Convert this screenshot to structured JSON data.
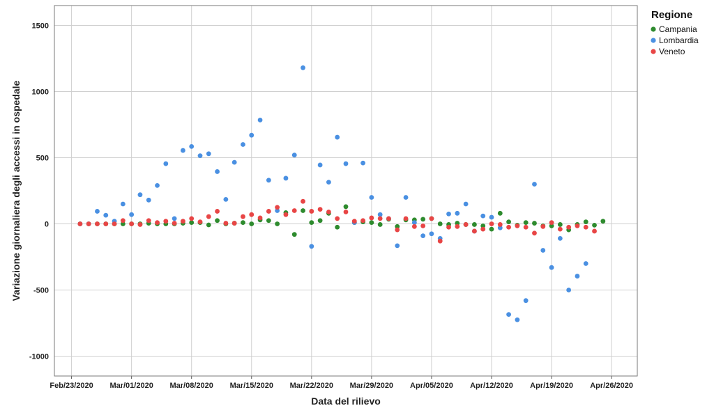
{
  "chart_data": {
    "type": "scatter",
    "title": "",
    "xlabel": "Data del rilievo",
    "ylabel": "Variazione giornaliera degli accessi in ospedale",
    "x_ticks": [
      "Feb/23/2020",
      "Mar/01/2020",
      "Mar/08/2020",
      "Mar/15/2020",
      "Mar/22/2020",
      "Mar/29/2020",
      "Apr/05/2020",
      "Apr/12/2020",
      "Apr/19/2020",
      "Apr/26/2020"
    ],
    "xlim": [
      "2020-02-21",
      "2020-04-29"
    ],
    "ylim": [
      -1150,
      1650
    ],
    "y_ticks": [
      -1000,
      -500,
      0,
      500,
      1000,
      1500
    ],
    "grid": true,
    "legend": {
      "title": "Regione",
      "position": "right"
    },
    "series": [
      {
        "name": "Campania",
        "color": "#2e8b2e",
        "points": [
          [
            "2020-02-24",
            0
          ],
          [
            "2020-02-25",
            0
          ],
          [
            "2020-02-26",
            0
          ],
          [
            "2020-02-27",
            0
          ],
          [
            "2020-02-28",
            0
          ],
          [
            "2020-02-29",
            0
          ],
          [
            "2020-03-01",
            0
          ],
          [
            "2020-03-02",
            0
          ],
          [
            "2020-03-03",
            5
          ],
          [
            "2020-03-04",
            0
          ],
          [
            "2020-03-05",
            0
          ],
          [
            "2020-03-06",
            0
          ],
          [
            "2020-03-07",
            5
          ],
          [
            "2020-03-08",
            10
          ],
          [
            "2020-03-09",
            10
          ],
          [
            "2020-03-10",
            -8
          ],
          [
            "2020-03-11",
            25
          ],
          [
            "2020-03-12",
            0
          ],
          [
            "2020-03-13",
            5
          ],
          [
            "2020-03-14",
            10
          ],
          [
            "2020-03-15",
            0
          ],
          [
            "2020-03-16",
            30
          ],
          [
            "2020-03-17",
            25
          ],
          [
            "2020-03-18",
            0
          ],
          [
            "2020-03-19",
            85
          ],
          [
            "2020-03-20",
            -80
          ],
          [
            "2020-03-21",
            100
          ],
          [
            "2020-03-22",
            10
          ],
          [
            "2020-03-23",
            25
          ],
          [
            "2020-03-24",
            80
          ],
          [
            "2020-03-25",
            -25
          ],
          [
            "2020-03-26",
            130
          ],
          [
            "2020-03-27",
            10
          ],
          [
            "2020-03-28",
            15
          ],
          [
            "2020-03-29",
            10
          ],
          [
            "2020-03-30",
            -5
          ],
          [
            "2020-03-31",
            35
          ],
          [
            "2020-04-01",
            -20
          ],
          [
            "2020-04-02",
            30
          ],
          [
            "2020-04-03",
            30
          ],
          [
            "2020-04-04",
            35
          ],
          [
            "2020-04-05",
            40
          ],
          [
            "2020-04-06",
            0
          ],
          [
            "2020-04-07",
            -5
          ],
          [
            "2020-04-08",
            5
          ],
          [
            "2020-04-09",
            -5
          ],
          [
            "2020-04-10",
            -5
          ],
          [
            "2020-04-11",
            -15
          ],
          [
            "2020-04-12",
            -40
          ],
          [
            "2020-04-13",
            80
          ],
          [
            "2020-04-14",
            15
          ],
          [
            "2020-04-15",
            -10
          ],
          [
            "2020-04-16",
            10
          ],
          [
            "2020-04-17",
            5
          ],
          [
            "2020-04-18",
            -15
          ],
          [
            "2020-04-19",
            -15
          ],
          [
            "2020-04-20",
            -5
          ],
          [
            "2020-04-21",
            -45
          ],
          [
            "2020-04-22",
            -5
          ],
          [
            "2020-04-23",
            15
          ],
          [
            "2020-04-24",
            -10
          ],
          [
            "2020-04-25",
            20
          ]
        ]
      },
      {
        "name": "Lombardia",
        "color": "#4a90e2",
        "points": [
          [
            "2020-02-24",
            0
          ],
          [
            "2020-02-25",
            0
          ],
          [
            "2020-02-26",
            95
          ],
          [
            "2020-02-27",
            65
          ],
          [
            "2020-02-28",
            20
          ],
          [
            "2020-02-29",
            150
          ],
          [
            "2020-03-01",
            70
          ],
          [
            "2020-03-02",
            220
          ],
          [
            "2020-03-03",
            180
          ],
          [
            "2020-03-04",
            290
          ],
          [
            "2020-03-05",
            455
          ],
          [
            "2020-03-06",
            40
          ],
          [
            "2020-03-07",
            555
          ],
          [
            "2020-03-08",
            585
          ],
          [
            "2020-03-09",
            515
          ],
          [
            "2020-03-10",
            530
          ],
          [
            "2020-03-11",
            395
          ],
          [
            "2020-03-12",
            185
          ],
          [
            "2020-03-13",
            465
          ],
          [
            "2020-03-14",
            600
          ],
          [
            "2020-03-15",
            670
          ],
          [
            "2020-03-16",
            785
          ],
          [
            "2020-03-17",
            330
          ],
          [
            "2020-03-18",
            100
          ],
          [
            "2020-03-19",
            345
          ],
          [
            "2020-03-20",
            520
          ],
          [
            "2020-03-21",
            1180
          ],
          [
            "2020-03-22",
            -170
          ],
          [
            "2020-03-23",
            445
          ],
          [
            "2020-03-24",
            315
          ],
          [
            "2020-03-25",
            655
          ],
          [
            "2020-03-26",
            455
          ],
          [
            "2020-03-27",
            10
          ],
          [
            "2020-03-28",
            460
          ],
          [
            "2020-03-29",
            200
          ],
          [
            "2020-03-30",
            70
          ],
          [
            "2020-03-31",
            40
          ],
          [
            "2020-04-01",
            -165
          ],
          [
            "2020-04-02",
            200
          ],
          [
            "2020-04-03",
            10
          ],
          [
            "2020-04-04",
            -90
          ],
          [
            "2020-04-05",
            -75
          ],
          [
            "2020-04-06",
            -110
          ],
          [
            "2020-04-07",
            75
          ],
          [
            "2020-04-08",
            80
          ],
          [
            "2020-04-09",
            150
          ],
          [
            "2020-04-10",
            -55
          ],
          [
            "2020-04-11",
            60
          ],
          [
            "2020-04-12",
            50
          ],
          [
            "2020-04-13",
            -30
          ],
          [
            "2020-04-14",
            -685
          ],
          [
            "2020-04-15",
            -725
          ],
          [
            "2020-04-16",
            -580
          ],
          [
            "2020-04-17",
            300
          ],
          [
            "2020-04-18",
            -200
          ],
          [
            "2020-04-19",
            -330
          ],
          [
            "2020-04-20",
            -110
          ],
          [
            "2020-04-21",
            -500
          ],
          [
            "2020-04-22",
            -395
          ],
          [
            "2020-04-23",
            -300
          ]
        ]
      },
      {
        "name": "Veneto",
        "color": "#e84545",
        "points": [
          [
            "2020-02-24",
            0
          ],
          [
            "2020-02-25",
            0
          ],
          [
            "2020-02-26",
            0
          ],
          [
            "2020-02-27",
            0
          ],
          [
            "2020-02-28",
            0
          ],
          [
            "2020-02-29",
            25
          ],
          [
            "2020-03-01",
            0
          ],
          [
            "2020-03-02",
            -5
          ],
          [
            "2020-03-03",
            25
          ],
          [
            "2020-03-04",
            10
          ],
          [
            "2020-03-05",
            20
          ],
          [
            "2020-03-06",
            5
          ],
          [
            "2020-03-07",
            20
          ],
          [
            "2020-03-08",
            40
          ],
          [
            "2020-03-09",
            15
          ],
          [
            "2020-03-10",
            55
          ],
          [
            "2020-03-11",
            95
          ],
          [
            "2020-03-12",
            5
          ],
          [
            "2020-03-13",
            5
          ],
          [
            "2020-03-14",
            55
          ],
          [
            "2020-03-15",
            70
          ],
          [
            "2020-03-16",
            45
          ],
          [
            "2020-03-17",
            95
          ],
          [
            "2020-03-18",
            125
          ],
          [
            "2020-03-19",
            70
          ],
          [
            "2020-03-20",
            100
          ],
          [
            "2020-03-21",
            170
          ],
          [
            "2020-03-22",
            95
          ],
          [
            "2020-03-23",
            110
          ],
          [
            "2020-03-24",
            90
          ],
          [
            "2020-03-25",
            40
          ],
          [
            "2020-03-26",
            90
          ],
          [
            "2020-03-27",
            20
          ],
          [
            "2020-03-28",
            25
          ],
          [
            "2020-03-29",
            45
          ],
          [
            "2020-03-30",
            40
          ],
          [
            "2020-03-31",
            40
          ],
          [
            "2020-04-01",
            -45
          ],
          [
            "2020-04-02",
            40
          ],
          [
            "2020-04-03",
            -20
          ],
          [
            "2020-04-04",
            -15
          ],
          [
            "2020-04-05",
            40
          ],
          [
            "2020-04-06",
            -130
          ],
          [
            "2020-04-07",
            -25
          ],
          [
            "2020-04-08",
            -20
          ],
          [
            "2020-04-09",
            -5
          ],
          [
            "2020-04-10",
            -55
          ],
          [
            "2020-04-11",
            -40
          ],
          [
            "2020-04-12",
            0
          ],
          [
            "2020-04-13",
            -5
          ],
          [
            "2020-04-14",
            -25
          ],
          [
            "2020-04-15",
            -15
          ],
          [
            "2020-04-16",
            -25
          ],
          [
            "2020-04-17",
            -70
          ],
          [
            "2020-04-18",
            -20
          ],
          [
            "2020-04-19",
            10
          ],
          [
            "2020-04-20",
            -40
          ],
          [
            "2020-04-21",
            -25
          ],
          [
            "2020-04-22",
            -15
          ],
          [
            "2020-04-23",
            -25
          ],
          [
            "2020-04-24",
            -55
          ]
        ]
      }
    ]
  }
}
